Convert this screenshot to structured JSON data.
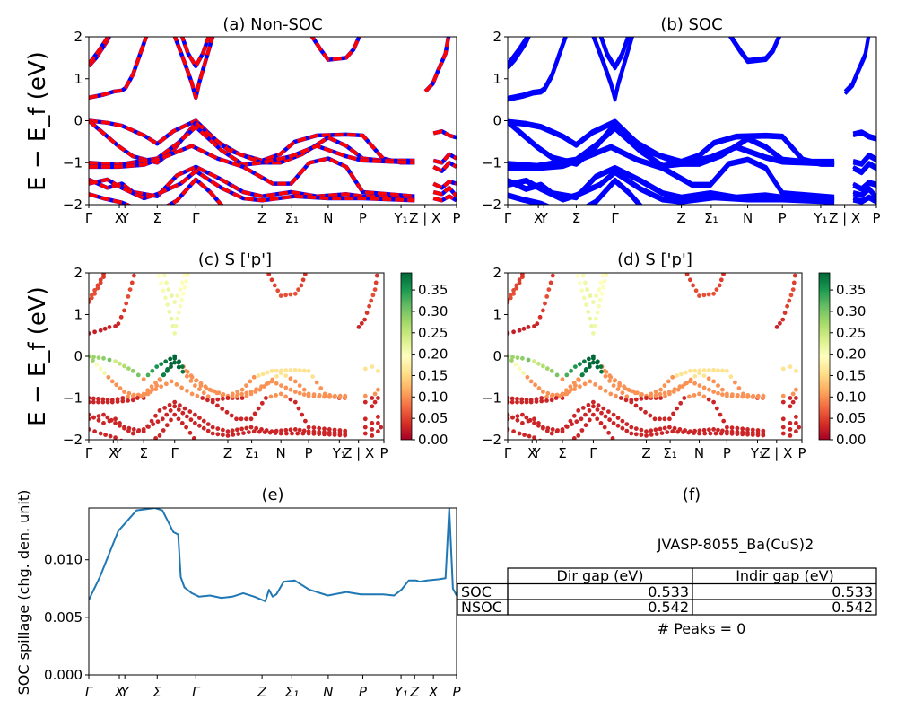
{
  "chart_data": [
    {
      "id": "a",
      "type": "line",
      "title": "(a) Non-SOC",
      "ylabel": "E − E_f (eV)",
      "ylim": [
        -2,
        2
      ],
      "yticks": [
        "2",
        "1",
        "0",
        "−1",
        "−2"
      ],
      "kpath": [
        "Γ",
        "X",
        "Y",
        "Σ",
        "Γ",
        "Z",
        "Σ₁",
        "N",
        "P",
        "Y₁",
        "Z | X",
        "P"
      ],
      "series": [
        {
          "color": "#0000ff",
          "description": "spin-up bands (blue)"
        },
        {
          "color": "#ff0000",
          "description": "spin-down bands (red, dashed)"
        }
      ]
    },
    {
      "id": "b",
      "type": "line",
      "title": "(b) SOC",
      "ylim": [
        -2,
        2
      ],
      "yticks": [
        "2",
        "1",
        "0",
        "−1",
        "−2"
      ],
      "kpath": [
        "Γ",
        "X",
        "Y",
        "Σ",
        "Γ",
        "Z",
        "Σ₁",
        "N",
        "P",
        "Y₁",
        "Z | X",
        "P"
      ],
      "series": [
        {
          "color": "#0000ff"
        }
      ]
    },
    {
      "id": "c",
      "type": "scatter",
      "title": "(c)  S ['p']",
      "ylabel": "E − E_f (eV)",
      "ylim": [
        -2,
        2
      ],
      "yticks": [
        "2",
        "1",
        "0",
        "−1",
        "−2"
      ],
      "kpath": [
        "Γ",
        "X",
        "Y",
        "Σ",
        "Γ",
        "Z",
        "Σ₁",
        "N",
        "P",
        "Y₁",
        "Z | X",
        "P"
      ],
      "colorbar": {
        "min": 0.0,
        "max": 0.39,
        "colormap": "RdYlGn",
        "ticks": [
          "0.35",
          "0.30",
          "0.25",
          "0.20",
          "0.15",
          "0.10",
          "0.05",
          "0.00"
        ]
      }
    },
    {
      "id": "d",
      "type": "scatter",
      "title": "(d) S ['p']",
      "ylim": [
        -2,
        2
      ],
      "yticks": [
        "2",
        "1",
        "0",
        "−1",
        "−2"
      ],
      "kpath": [
        "Γ",
        "X",
        "Y",
        "Σ",
        "Γ",
        "Z",
        "Σ₁",
        "N",
        "P",
        "Y₁",
        "Z | X",
        "P"
      ],
      "colorbar": {
        "min": 0.0,
        "max": 0.39,
        "colormap": "RdYlGn",
        "ticks": [
          "0.35",
          "0.30",
          "0.25",
          "0.20",
          "0.15",
          "0.10",
          "0.05",
          "0.00"
        ]
      }
    },
    {
      "id": "e",
      "type": "line",
      "title": "(e)",
      "ylabel": "SOC spillage (chg. den. unit)",
      "ylim": [
        0,
        0.0145
      ],
      "yticks": [
        "0.010",
        "0.005",
        "0.000"
      ],
      "kpath": [
        "Γ",
        "X",
        "Y",
        "Σ",
        "Γ",
        "Z",
        "Σ₁",
        "N",
        "P",
        "Y₁",
        "Z",
        "X",
        "P"
      ],
      "series": [
        {
          "color": "#1f77b4",
          "x": [
            0,
            0.03,
            0.08,
            0.13,
            0.18,
            0.2,
            0.23,
            0.243,
            0.25,
            0.26,
            0.28,
            0.3,
            0.33,
            0.36,
            0.39,
            0.42,
            0.45,
            0.48,
            0.49,
            0.5,
            0.51,
            0.53,
            0.56,
            0.6,
            0.65,
            0.7,
            0.74,
            0.77,
            0.8,
            0.83,
            0.85,
            0.87,
            0.89,
            0.9,
            0.92,
            0.95,
            0.97,
            0.98,
            0.99,
            1.0
          ],
          "values": [
            0.0065,
            0.0085,
            0.0125,
            0.0143,
            0.0145,
            0.0143,
            0.0124,
            0.0122,
            0.0085,
            0.0076,
            0.0071,
            0.0068,
            0.0069,
            0.0067,
            0.0068,
            0.0071,
            0.0068,
            0.0064,
            0.0074,
            0.0068,
            0.007,
            0.0081,
            0.0082,
            0.0074,
            0.0069,
            0.0072,
            0.007,
            0.007,
            0.007,
            0.0069,
            0.0074,
            0.0082,
            0.0082,
            0.0081,
            0.0082,
            0.0083,
            0.0084,
            0.0145,
            0.0075,
            0.0069
          ]
        }
      ]
    }
  ],
  "table": {
    "title": "JVASP-8055_Ba(CuS)2",
    "panel_label": "(f)",
    "columns": [
      "Dir gap (eV)",
      "Indir gap (eV)"
    ],
    "rows": [
      {
        "label": "SOC",
        "dir": "0.533",
        "indir": "0.533"
      },
      {
        "label": "NSOC",
        "dir": "0.542",
        "indir": "0.542"
      }
    ],
    "footer": "# Peaks = 0"
  }
}
